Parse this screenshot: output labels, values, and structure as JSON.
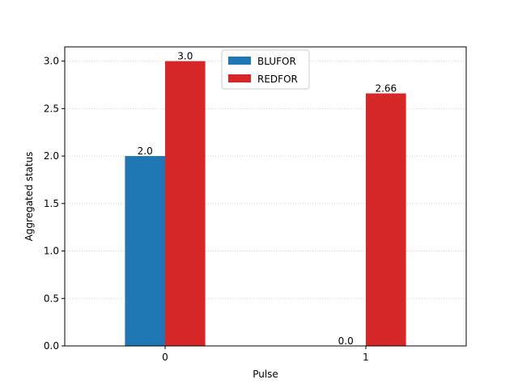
{
  "chart_data": {
    "type": "bar",
    "title": "",
    "xlabel": "Pulse",
    "ylabel": "Aggregated status",
    "categories": [
      "0",
      "1"
    ],
    "series": [
      {
        "name": "BLUFOR",
        "values": [
          2.0,
          0.0
        ],
        "labels": [
          "2.0",
          "0.0"
        ],
        "color": "#1f77b4"
      },
      {
        "name": "REDFOR",
        "values": [
          3.0,
          2.66
        ],
        "labels": [
          "3.0",
          "2.66"
        ],
        "color": "#d62728"
      }
    ],
    "ylim": [
      0,
      3.15
    ],
    "yticks": [
      0.0,
      0.5,
      1.0,
      1.5,
      2.0,
      2.5,
      3.0
    ],
    "ytick_labels": [
      "0.0",
      "0.5",
      "1.0",
      "1.5",
      "2.0",
      "2.5",
      "3.0"
    ],
    "grid": {
      "y": true,
      "style": "dotted",
      "color": "#cccccc"
    },
    "legend": {
      "position": "top-center"
    }
  }
}
